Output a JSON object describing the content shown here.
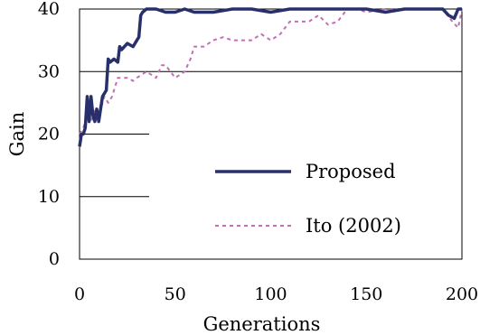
{
  "chart_data": {
    "type": "line",
    "title": "",
    "xlabel": "Generations",
    "ylabel": "Gain",
    "xlim": [
      0,
      200
    ],
    "ylim": [
      0,
      40
    ],
    "x_ticks": [
      "0",
      "50",
      "100",
      "150",
      "200"
    ],
    "y_ticks": [
      "0",
      "10",
      "20",
      "30",
      "40"
    ],
    "grid": "horizontal",
    "legend_position": "lower-right",
    "series": [
      {
        "name": "Proposed",
        "style": "solid",
        "color": "#27306b",
        "x": [
          0,
          1,
          2,
          3,
          4,
          5,
          6,
          7,
          8,
          9,
          10,
          12,
          14,
          15,
          16,
          18,
          20,
          21,
          22,
          25,
          28,
          30,
          31,
          32,
          33,
          35,
          40,
          45,
          50,
          55,
          60,
          70,
          80,
          90,
          100,
          110,
          120,
          130,
          140,
          150,
          160,
          170,
          180,
          190,
          193,
          196,
          198,
          200
        ],
        "y": [
          18,
          20,
          20,
          21,
          26,
          22,
          26,
          23,
          22,
          24,
          22,
          26,
          27,
          32,
          31.5,
          32,
          31.5,
          34,
          33.5,
          34.5,
          34,
          35,
          35.5,
          39,
          39.5,
          40,
          40,
          39.5,
          39.5,
          40,
          39.5,
          39.5,
          40,
          40,
          39.5,
          40,
          40,
          40,
          40,
          40,
          39.5,
          40,
          40,
          40,
          39,
          38.5,
          40,
          40
        ]
      },
      {
        "name": "Ito (2002)",
        "style": "dashed",
        "color": "#c36fb5",
        "x": [
          0,
          2,
          4,
          6,
          8,
          10,
          13,
          15,
          17,
          20,
          25,
          28,
          30,
          35,
          40,
          43,
          45,
          50,
          55,
          58,
          60,
          65,
          70,
          75,
          80,
          85,
          90,
          95,
          100,
          105,
          110,
          115,
          120,
          125,
          130,
          135,
          140,
          145,
          150,
          160,
          170,
          180,
          190,
          195,
          198,
          200
        ],
        "y": [
          20,
          21,
          23,
          22,
          24,
          23,
          26,
          25,
          26,
          29,
          29,
          28.5,
          29,
          30,
          29,
          31,
          31,
          29,
          30,
          32,
          34,
          34,
          35,
          35.5,
          35,
          35,
          35,
          36,
          35,
          36,
          38,
          38,
          38,
          39,
          37.5,
          38,
          40,
          40,
          39.5,
          40,
          40,
          40,
          40,
          38,
          37,
          40
        ]
      }
    ]
  }
}
